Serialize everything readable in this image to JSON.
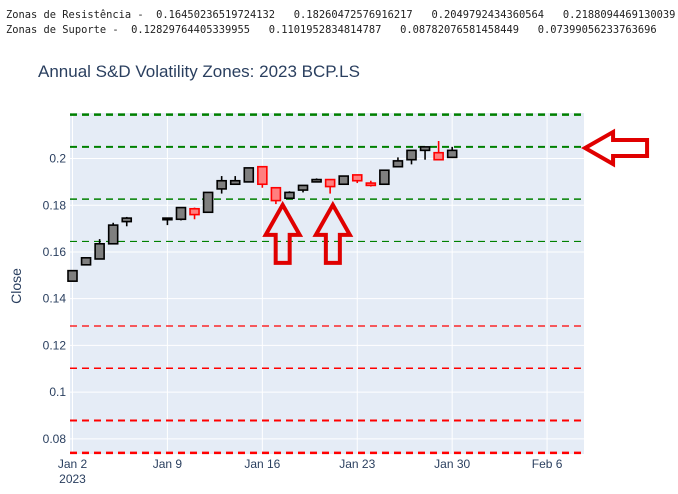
{
  "console": {
    "resist_label": "Zonas de Resistência -",
    "resist_values": [
      "0.16450236519724132",
      "0.18260472576916217",
      "0.2049792434360564",
      "0.2188094469130039"
    ],
    "support_label": "Zonas de Suporte -",
    "support_values": [
      "0.12829764405339955",
      "0.1101952834814787",
      "0.08782076581458449",
      "0.07399056233763696"
    ]
  },
  "chart_data": {
    "type": "candlestick",
    "title": "Annual S&D Volatility Zones: 2023 BCP.LS",
    "ylabel": "Close",
    "xlabel": "",
    "ylim": [
      0.0735,
      0.2195
    ],
    "yticks": [
      0.08,
      0.1,
      0.12,
      0.14,
      0.16,
      0.18,
      0.2
    ],
    "ytick_labels": [
      "0.08",
      "0.1",
      "0.12",
      "0.14",
      "0.16",
      "0.18",
      "0.2"
    ],
    "xlim": [
      0,
      37.5
    ],
    "xticks": [
      {
        "day": 0,
        "label": "Jan 2",
        "sub": "2023"
      },
      {
        "day": 7,
        "label": "Jan 9",
        "sub": ""
      },
      {
        "day": 14,
        "label": "Jan 16",
        "sub": ""
      },
      {
        "day": 21,
        "label": "Jan 23",
        "sub": ""
      },
      {
        "day": 28,
        "label": "Jan 30",
        "sub": ""
      },
      {
        "day": 35,
        "label": "Feb 6",
        "sub": ""
      }
    ],
    "resistance_zones": [
      0.16450236519724132,
      0.18260472576916217,
      0.2049792434360564,
      0.2188094469130039
    ],
    "support_zones": [
      0.12829764405339955,
      0.1101952834814787,
      0.08782076581458449,
      0.07399056233763696
    ],
    "candles": [
      {
        "day": 0,
        "open": 0.1475,
        "close": 0.152,
        "high": 0.152,
        "low": 0.1475
      },
      {
        "day": 1,
        "open": 0.1545,
        "close": 0.1575,
        "high": 0.1575,
        "low": 0.1545
      },
      {
        "day": 2,
        "open": 0.157,
        "close": 0.1635,
        "high": 0.1655,
        "low": 0.157
      },
      {
        "day": 3,
        "open": 0.1635,
        "close": 0.1715,
        "high": 0.1725,
        "low": 0.1635
      },
      {
        "day": 4,
        "open": 0.173,
        "close": 0.1745,
        "high": 0.175,
        "low": 0.171
      },
      {
        "day": 7,
        "open": 0.1745,
        "close": 0.1745,
        "high": 0.1745,
        "low": 0.1715
      },
      {
        "day": 8,
        "open": 0.174,
        "close": 0.179,
        "high": 0.179,
        "low": 0.1735
      },
      {
        "day": 9,
        "open": 0.1785,
        "close": 0.176,
        "high": 0.179,
        "low": 0.174
      },
      {
        "day": 10,
        "open": 0.177,
        "close": 0.1855,
        "high": 0.1855,
        "low": 0.177
      },
      {
        "day": 11,
        "open": 0.187,
        "close": 0.1905,
        "high": 0.1925,
        "low": 0.185
      },
      {
        "day": 12,
        "open": 0.189,
        "close": 0.1905,
        "high": 0.1925,
        "low": 0.189
      },
      {
        "day": 13,
        "open": 0.19,
        "close": 0.196,
        "high": 0.196,
        "low": 0.19
      },
      {
        "day": 14,
        "open": 0.1965,
        "close": 0.189,
        "high": 0.1965,
        "low": 0.1875
      },
      {
        "day": 15,
        "open": 0.1875,
        "close": 0.182,
        "high": 0.1875,
        "low": 0.1805
      },
      {
        "day": 16,
        "open": 0.183,
        "close": 0.1855,
        "high": 0.186,
        "low": 0.183
      },
      {
        "day": 17,
        "open": 0.1865,
        "close": 0.1885,
        "high": 0.1885,
        "low": 0.1855
      },
      {
        "day": 18,
        "open": 0.19,
        "close": 0.191,
        "high": 0.1915,
        "low": 0.19
      },
      {
        "day": 19,
        "open": 0.191,
        "close": 0.188,
        "high": 0.191,
        "low": 0.185
      },
      {
        "day": 20,
        "open": 0.189,
        "close": 0.1925,
        "high": 0.1925,
        "low": 0.189
      },
      {
        "day": 21,
        "open": 0.193,
        "close": 0.1905,
        "high": 0.193,
        "low": 0.1895
      },
      {
        "day": 22,
        "open": 0.1895,
        "close": 0.1885,
        "high": 0.1905,
        "low": 0.188
      },
      {
        "day": 23,
        "open": 0.189,
        "close": 0.195,
        "high": 0.195,
        "low": 0.189
      },
      {
        "day": 24,
        "open": 0.1965,
        "close": 0.199,
        "high": 0.2005,
        "low": 0.1965
      },
      {
        "day": 25,
        "open": 0.1995,
        "close": 0.2035,
        "high": 0.2035,
        "low": 0.1975
      },
      {
        "day": 26,
        "open": 0.2035,
        "close": 0.205,
        "high": 0.205,
        "low": 0.1995
      },
      {
        "day": 27,
        "open": 0.2025,
        "close": 0.1995,
        "high": 0.2075,
        "low": 0.1995
      },
      {
        "day": 28,
        "open": 0.2005,
        "close": 0.2035,
        "high": 0.205,
        "low": 0.2005
      }
    ],
    "annotation_arrows": [
      {
        "day": 15.5,
        "value": 0.181,
        "direction": "up"
      },
      {
        "day": 19.2,
        "value": 0.181,
        "direction": "up"
      },
      {
        "day": 37.8,
        "value": 0.2045,
        "direction": "left"
      }
    ],
    "colors": {
      "increasing_fill": "#7f7f7f",
      "increasing_line": "#000000",
      "decreasing_fill": "#ff7f7f",
      "decreasing_line": "#ff0000",
      "resistance": "#008000",
      "support": "#ff0000",
      "plot_bg": "#e5ecf6",
      "arrow": "#e00000"
    }
  }
}
